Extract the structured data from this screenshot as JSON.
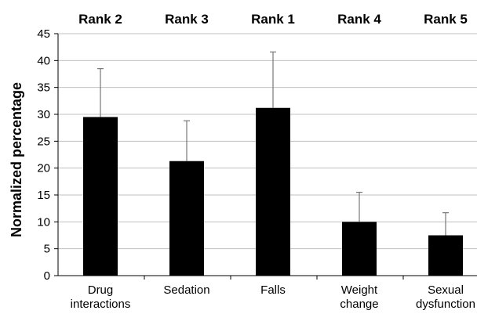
{
  "chart_data": {
    "type": "bar",
    "ylabel": "Normalized percentage",
    "xlabel": "",
    "ylim": [
      0,
      45
    ],
    "yticks": [
      0,
      5,
      10,
      15,
      20,
      25,
      30,
      35,
      40,
      45
    ],
    "grid": true,
    "categories": [
      [
        "Drug",
        "interactions"
      ],
      [
        "Sedation"
      ],
      [
        "Falls"
      ],
      [
        "Weight",
        "change"
      ],
      [
        "Sexual",
        "dysfunction"
      ]
    ],
    "rank_labels": [
      "Rank 2",
      "Rank 3",
      "Rank 1",
      "Rank 4",
      "Rank 5"
    ],
    "values": [
      29.5,
      21.3,
      31.2,
      10.0,
      7.5
    ],
    "error_upper": [
      38.5,
      28.8,
      41.6,
      15.5,
      11.7
    ],
    "bar_color": "#000000",
    "grid_color": "#c0c0c0"
  }
}
